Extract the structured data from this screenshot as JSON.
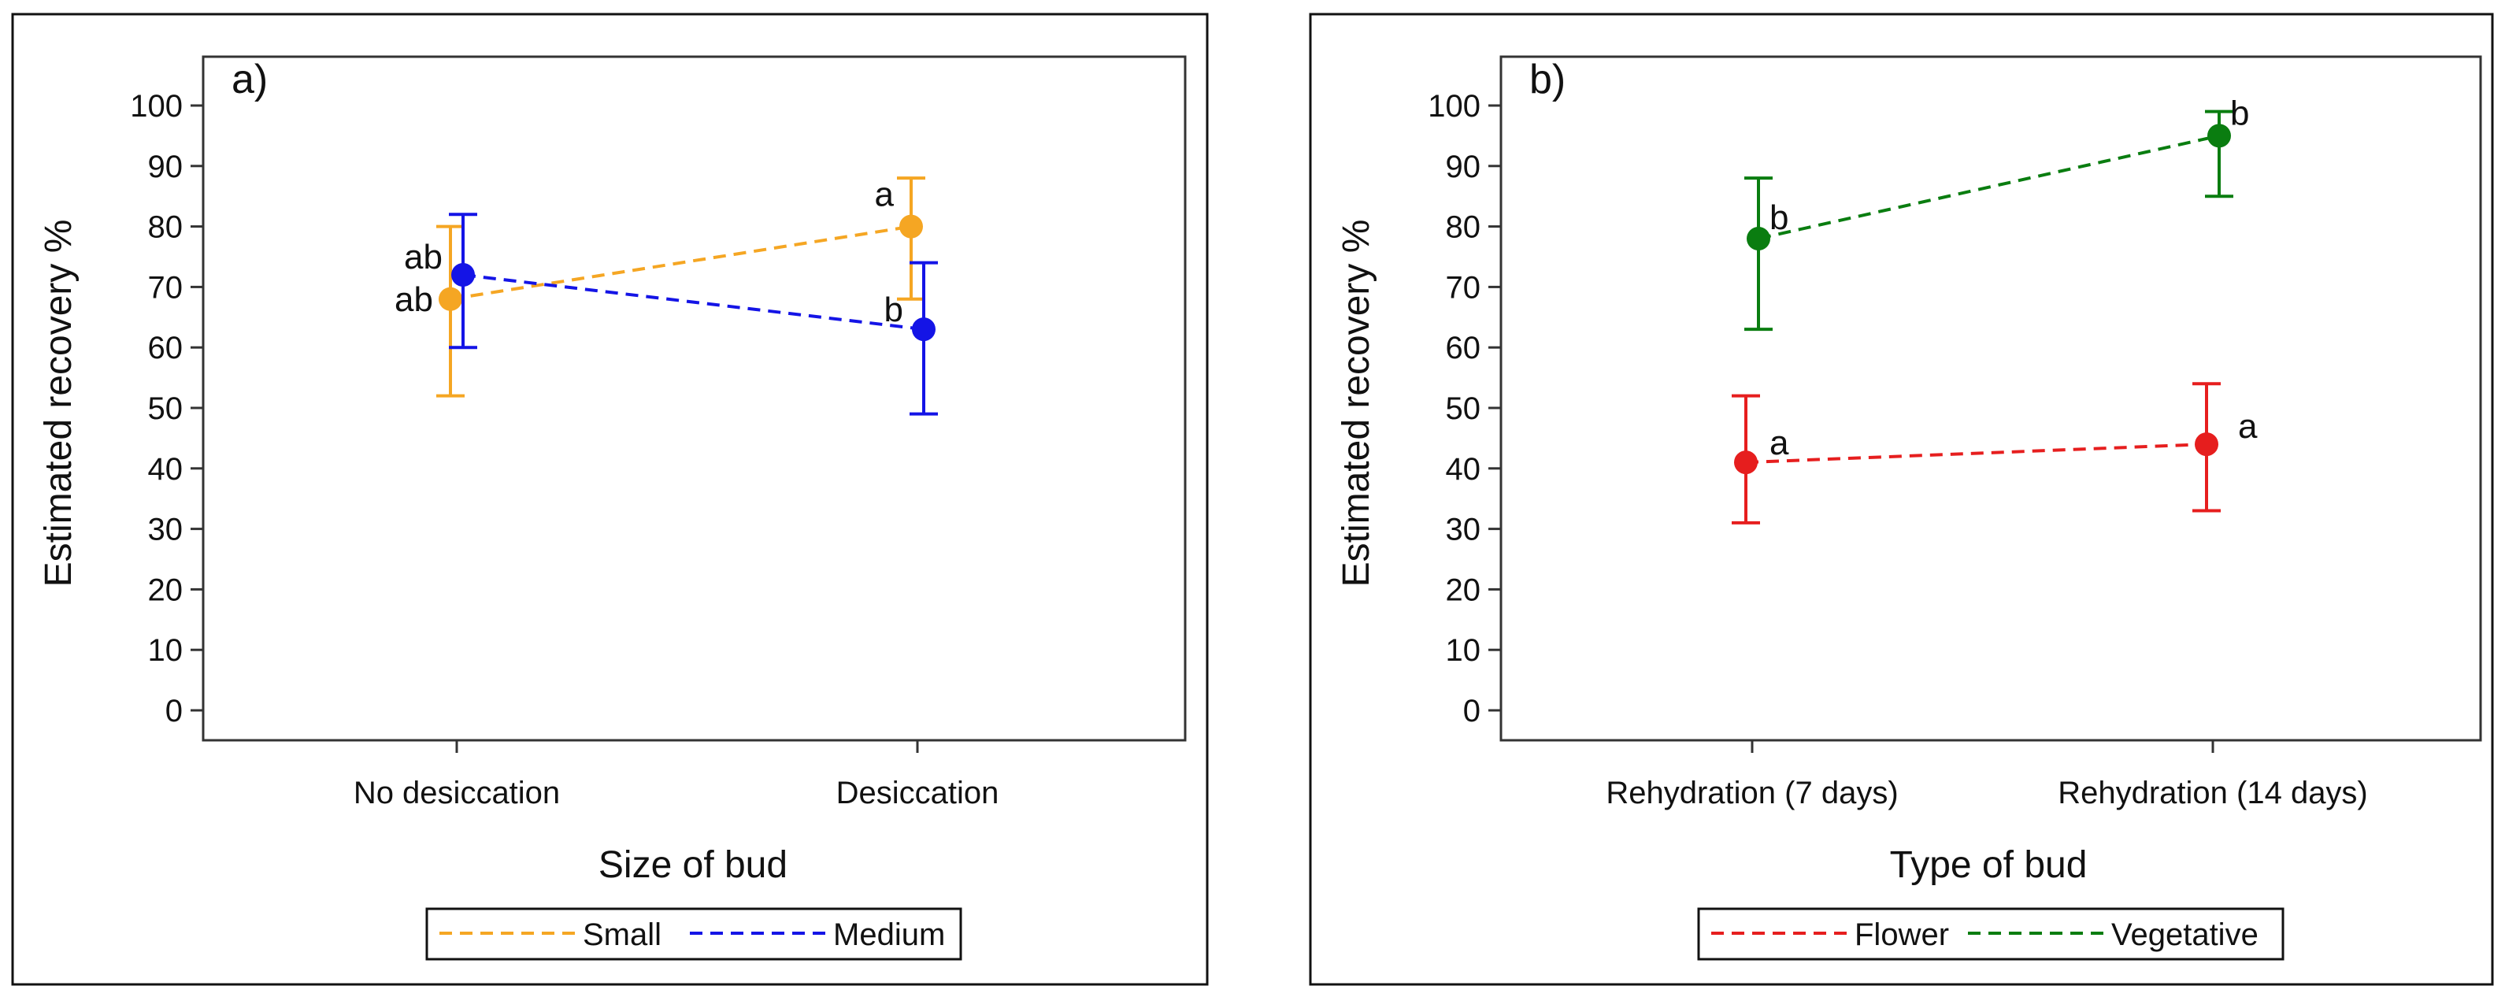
{
  "chart_data": [
    {
      "type": "line",
      "panel_label": "a)",
      "xlabel": "Size of bud",
      "ylabel": "Estimated recovery %",
      "ylim": [
        0,
        100
      ],
      "yticks": [
        0,
        10,
        20,
        30,
        40,
        50,
        60,
        70,
        80,
        90,
        100
      ],
      "categories": [
        "No desiccation",
        "Desiccation"
      ],
      "error_bars": true,
      "grid": false,
      "legend": "bottom",
      "series": [
        {
          "name": "Small",
          "color": "#F5A623",
          "values": [
            68,
            80
          ],
          "lower": [
            52,
            68
          ],
          "upper": [
            80,
            88
          ],
          "point_labels": [
            "ab",
            "a"
          ]
        },
        {
          "name": "Medium",
          "color": "#1414E6",
          "values": [
            72,
            63
          ],
          "lower": [
            60,
            49
          ],
          "upper": [
            82,
            74
          ],
          "point_labels": [
            "ab",
            "b"
          ]
        }
      ]
    },
    {
      "type": "line",
      "panel_label": "b)",
      "xlabel": "Type of bud",
      "ylabel": "Estimated recovery %",
      "ylim": [
        0,
        100
      ],
      "yticks": [
        0,
        10,
        20,
        30,
        40,
        50,
        60,
        70,
        80,
        90,
        100
      ],
      "categories": [
        "Rehydration (7 days)",
        "Rehydration (14 days)"
      ],
      "error_bars": true,
      "grid": false,
      "legend": "bottom",
      "series": [
        {
          "name": "Flower",
          "color": "#E61E1E",
          "values": [
            41,
            44
          ],
          "lower": [
            31,
            33
          ],
          "upper": [
            52,
            54
          ],
          "point_labels": [
            "a",
            "a"
          ]
        },
        {
          "name": "Vegetative",
          "color": "#0A7D10",
          "values": [
            78,
            95
          ],
          "lower": [
            63,
            85
          ],
          "upper": [
            88,
            99
          ],
          "point_labels": [
            "b",
            "b"
          ]
        }
      ]
    }
  ]
}
